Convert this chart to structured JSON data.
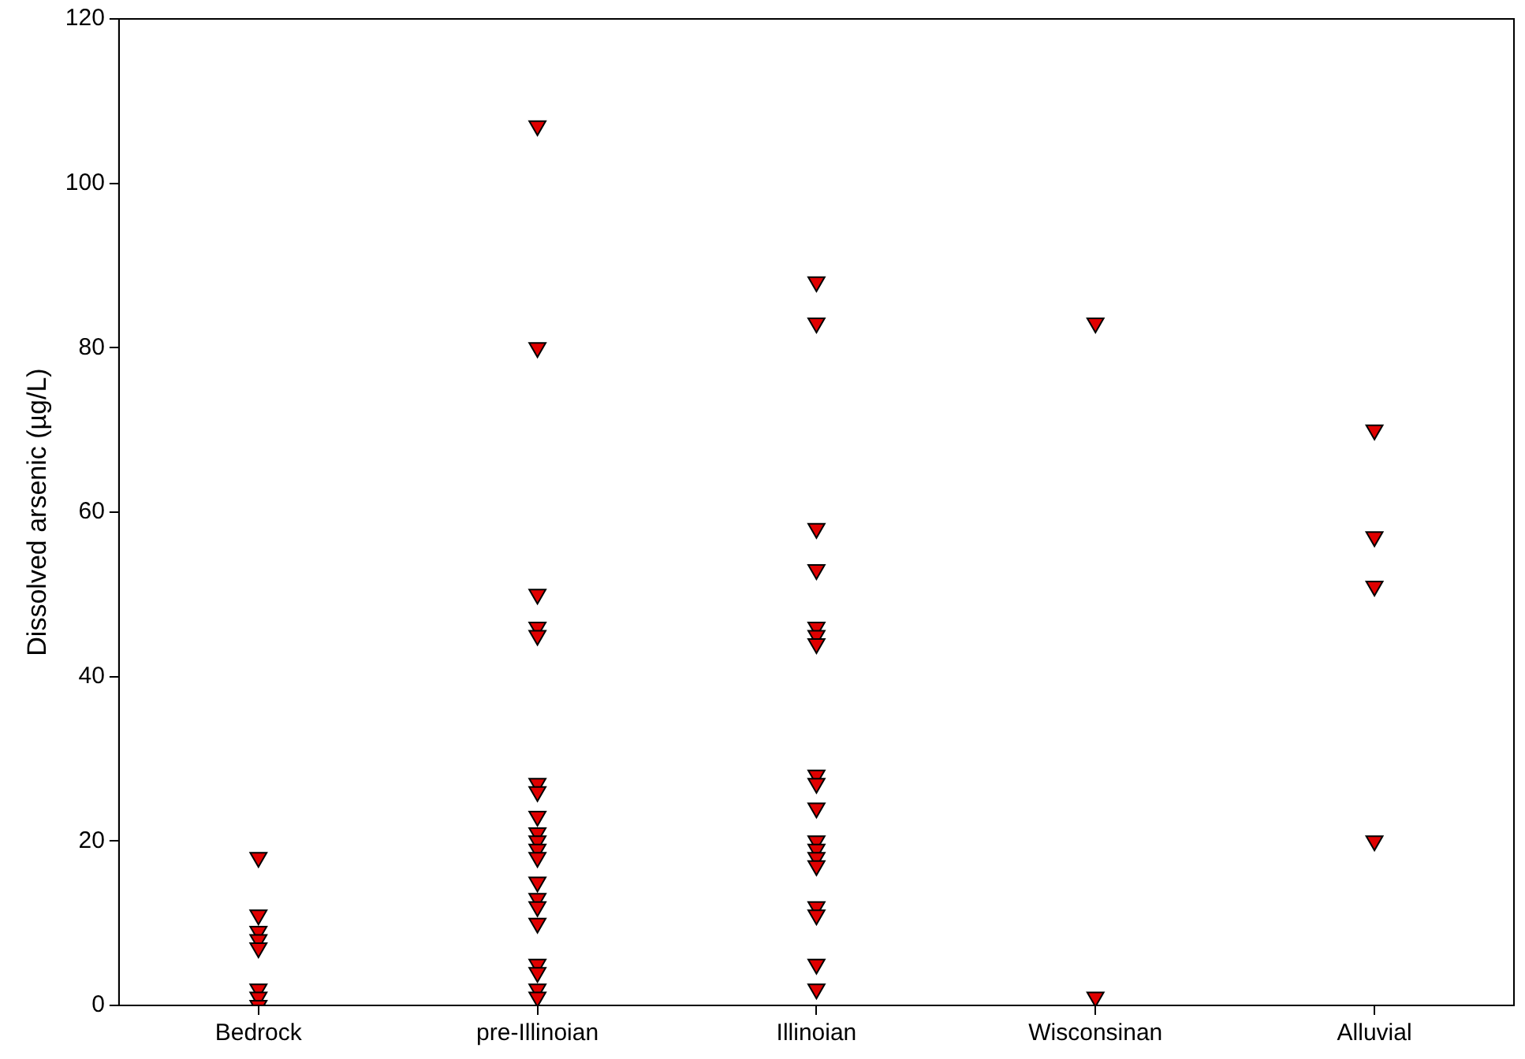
{
  "chart_data": {
    "type": "scatter",
    "ylabel": "Dissolved arsenic (µg/L)",
    "categories": [
      "Bedrock",
      "pre-Illinoian",
      "Illinoian",
      "Wisconsinan",
      "Alluvial"
    ],
    "ylim": [
      0,
      120
    ],
    "yticks": [
      0,
      20,
      40,
      60,
      80,
      100,
      120
    ],
    "grid": false,
    "legend": false,
    "marker": "triangle",
    "series": [
      {
        "color": "#e00000",
        "x": [
          "Bedrock",
          "Bedrock",
          "Bedrock",
          "Bedrock",
          "Bedrock",
          "Bedrock",
          "Bedrock",
          "Bedrock",
          "pre-Illinoian",
          "pre-Illinoian",
          "pre-Illinoian",
          "pre-Illinoian",
          "pre-Illinoian",
          "pre-Illinoian",
          "pre-Illinoian",
          "pre-Illinoian",
          "pre-Illinoian",
          "pre-Illinoian",
          "pre-Illinoian",
          "pre-Illinoian",
          "pre-Illinoian",
          "pre-Illinoian",
          "pre-Illinoian",
          "pre-Illinoian",
          "pre-Illinoian",
          "pre-Illinoian",
          "pre-Illinoian",
          "pre-Illinoian",
          "Illinoian",
          "Illinoian",
          "Illinoian",
          "Illinoian",
          "Illinoian",
          "Illinoian",
          "Illinoian",
          "Illinoian",
          "Illinoian",
          "Illinoian",
          "Illinoian",
          "Illinoian",
          "Illinoian",
          "Illinoian",
          "Illinoian",
          "Illinoian",
          "Illinoian",
          "Illinoian",
          "Wisconsinan",
          "Wisconsinan",
          "Alluvial",
          "Alluvial",
          "Alluvial",
          "Alluvial"
        ],
        "values": [
          18,
          11,
          9,
          8,
          7,
          2,
          1,
          0,
          107,
          80,
          50,
          46,
          45,
          27,
          26,
          23,
          21,
          20,
          19,
          18,
          15,
          13,
          12,
          10,
          5,
          4,
          2,
          1,
          88,
          83,
          58,
          53,
          46,
          45,
          44,
          28,
          27,
          24,
          20,
          19,
          18,
          17,
          12,
          11,
          5,
          2,
          83,
          1,
          70,
          57,
          51,
          20
        ]
      }
    ]
  }
}
